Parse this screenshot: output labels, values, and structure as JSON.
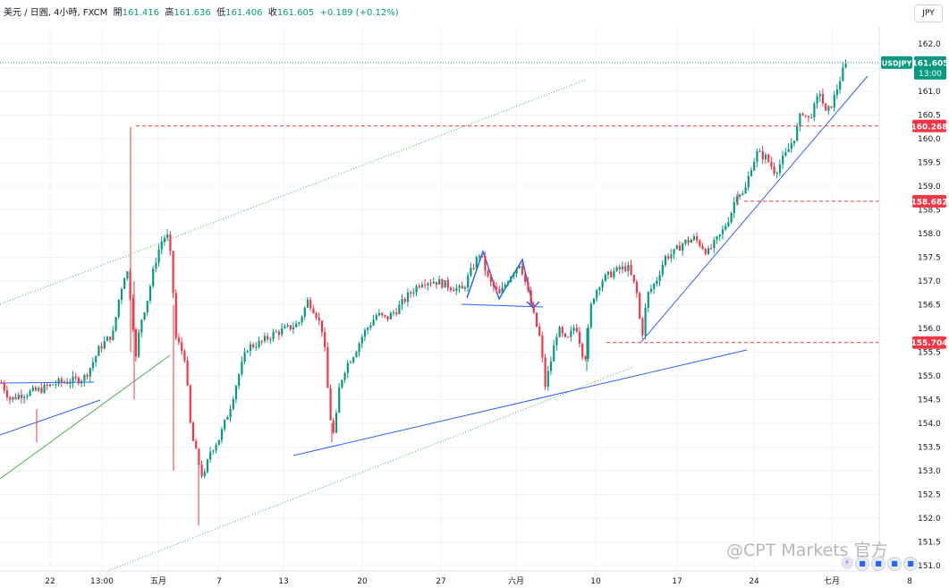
{
  "header": {
    "symbol_text": "美元 / 日圓, 4小時, FXCM",
    "open_label": "開",
    "open_value": "161.416",
    "high_label": "高",
    "high_value": "161.636",
    "low_label": "低",
    "low_value": "161.406",
    "close_label": "收",
    "close_value": "161.605",
    "change": "+0.189 (+0.12%)"
  },
  "currency_button": "JPY",
  "watermark": "@CPT Markets 官方",
  "colors": {
    "up": "#089981",
    "down": "#f23645",
    "trendline": "#2962ff",
    "channel": "#4caf50",
    "level": "#f23645"
  },
  "price_label": {
    "symbol": "USDJPY",
    "value": "161.605",
    "time": "13:00"
  },
  "chart_data": {
    "type": "candlestick",
    "y_range": [
      150.9,
      162.4
    ],
    "y_ticks": [
      "162.0",
      "161.5",
      "161.0",
      "160.5",
      "160.0",
      "159.5",
      "159.0",
      "158.5",
      "158.0",
      "157.5",
      "157.0",
      "156.5",
      "156.0",
      "155.5",
      "155.0",
      "154.5",
      "154.0",
      "153.5",
      "153.0",
      "152.5",
      "152.0",
      "151.5",
      "151.0"
    ],
    "x_ticks": [
      "22",
      "13:00",
      "五月",
      "7",
      "13",
      "20",
      "27",
      "六月",
      "10",
      "17",
      "24",
      "七月",
      "8"
    ],
    "levels": [
      {
        "label": "160.268",
        "value": 160.268
      },
      {
        "label": "158.682",
        "value": 158.682
      },
      {
        "label": "155.704",
        "value": 155.704
      }
    ],
    "last_close": 161.605,
    "anchors": [
      {
        "t": 0,
        "c": 154.85
      },
      {
        "t": 10,
        "c": 154.5
      },
      {
        "t": 20,
        "c": 154.6
      },
      {
        "t": 42,
        "c": 154.7
      },
      {
        "t": 62,
        "c": 154.85
      },
      {
        "t": 80,
        "c": 154.9
      },
      {
        "t": 92,
        "c": 154.95
      },
      {
        "t": 100,
        "c": 155.2
      },
      {
        "t": 110,
        "c": 155.6
      },
      {
        "t": 125,
        "c": 155.9
      },
      {
        "t": 132,
        "c": 156.7
      },
      {
        "t": 140,
        "c": 157.3
      },
      {
        "t": 146,
        "c": 156.4
      },
      {
        "t": 150,
        "c": 155.3
      },
      {
        "t": 155,
        "c": 156.1
      },
      {
        "t": 163,
        "c": 156.6
      },
      {
        "t": 172,
        "c": 157.4
      },
      {
        "t": 178,
        "c": 157.8
      },
      {
        "t": 185,
        "c": 158.0
      },
      {
        "t": 190,
        "c": 157.4
      },
      {
        "t": 195,
        "c": 155.8
      },
      {
        "t": 205,
        "c": 155.4
      },
      {
        "t": 212,
        "c": 153.8
      },
      {
        "t": 220,
        "c": 153.2
      },
      {
        "t": 226,
        "c": 152.8
      },
      {
        "t": 233,
        "c": 153.4
      },
      {
        "t": 244,
        "c": 153.7
      },
      {
        "t": 255,
        "c": 154.3
      },
      {
        "t": 265,
        "c": 155.0
      },
      {
        "t": 275,
        "c": 155.6
      },
      {
        "t": 290,
        "c": 155.7
      },
      {
        "t": 305,
        "c": 155.9
      },
      {
        "t": 320,
        "c": 156.0
      },
      {
        "t": 332,
        "c": 156.1
      },
      {
        "t": 343,
        "c": 156.6
      },
      {
        "t": 352,
        "c": 156.3
      },
      {
        "t": 360,
        "c": 155.9
      },
      {
        "t": 367,
        "c": 154.2
      },
      {
        "t": 372,
        "c": 153.7
      },
      {
        "t": 378,
        "c": 154.8
      },
      {
        "t": 385,
        "c": 155.2
      },
      {
        "t": 395,
        "c": 155.5
      },
      {
        "t": 405,
        "c": 155.9
      },
      {
        "t": 420,
        "c": 156.3
      },
      {
        "t": 430,
        "c": 156.2
      },
      {
        "t": 442,
        "c": 156.4
      },
      {
        "t": 455,
        "c": 156.7
      },
      {
        "t": 470,
        "c": 157.0
      },
      {
        "t": 485,
        "c": 157.0
      },
      {
        "t": 500,
        "c": 156.9
      },
      {
        "t": 515,
        "c": 156.8
      },
      {
        "t": 525,
        "c": 157.2
      },
      {
        "t": 535,
        "c": 157.6
      },
      {
        "t": 545,
        "c": 157.0
      },
      {
        "t": 557,
        "c": 156.7
      },
      {
        "t": 568,
        "c": 157.1
      },
      {
        "t": 580,
        "c": 157.4
      },
      {
        "t": 588,
        "c": 156.8
      },
      {
        "t": 596,
        "c": 156.2
      },
      {
        "t": 602,
        "c": 155.8
      },
      {
        "t": 608,
        "c": 154.8
      },
      {
        "t": 613,
        "c": 155.2
      },
      {
        "t": 622,
        "c": 156.0
      },
      {
        "t": 632,
        "c": 155.7
      },
      {
        "t": 642,
        "c": 156.1
      },
      {
        "t": 652,
        "c": 155.3
      },
      {
        "t": 660,
        "c": 156.6
      },
      {
        "t": 670,
        "c": 157.0
      },
      {
        "t": 685,
        "c": 157.2
      },
      {
        "t": 700,
        "c": 157.3
      },
      {
        "t": 710,
        "c": 156.8
      },
      {
        "t": 716,
        "c": 155.8
      },
      {
        "t": 722,
        "c": 156.7
      },
      {
        "t": 732,
        "c": 157.0
      },
      {
        "t": 742,
        "c": 157.5
      },
      {
        "t": 752,
        "c": 157.6
      },
      {
        "t": 762,
        "c": 157.8
      },
      {
        "t": 775,
        "c": 157.9
      },
      {
        "t": 790,
        "c": 157.6
      },
      {
        "t": 805,
        "c": 158.0
      },
      {
        "t": 815,
        "c": 158.4
      },
      {
        "t": 823,
        "c": 158.9
      },
      {
        "t": 830,
        "c": 158.8
      },
      {
        "t": 838,
        "c": 159.4
      },
      {
        "t": 845,
        "c": 159.7
      },
      {
        "t": 855,
        "c": 159.6
      },
      {
        "t": 865,
        "c": 159.3
      },
      {
        "t": 878,
        "c": 159.7
      },
      {
        "t": 888,
        "c": 160.1
      },
      {
        "t": 895,
        "c": 160.6
      },
      {
        "t": 902,
        "c": 160.4
      },
      {
        "t": 910,
        "c": 160.7
      },
      {
        "t": 915,
        "c": 161.0
      },
      {
        "t": 922,
        "c": 160.5
      },
      {
        "t": 930,
        "c": 160.8
      },
      {
        "t": 940,
        "c": 161.4
      },
      {
        "t": 946,
        "c": 161.605
      }
    ]
  }
}
